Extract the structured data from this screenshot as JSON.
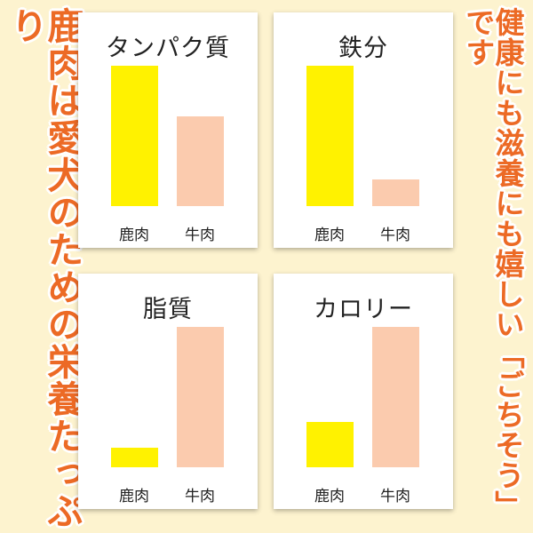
{
  "left_tagline": "鹿肉は愛犬のための栄養たっぷり",
  "right_tagline": "健康にも滋養にも嬉しい「ごちそう」です",
  "colors": {
    "deer": "#fff200",
    "beef": "#fbcbae",
    "accent": "#ec6a25",
    "background": "#fdf3cf"
  },
  "chart_data": [
    {
      "type": "bar",
      "title": "タンパク質",
      "categories": [
        "鹿肉",
        "牛肉"
      ],
      "values": [
        100,
        64
      ],
      "ylim": [
        0,
        100
      ]
    },
    {
      "type": "bar",
      "title": "鉄分",
      "categories": [
        "鹿肉",
        "牛肉"
      ],
      "values": [
        100,
        19
      ],
      "ylim": [
        0,
        100
      ]
    },
    {
      "type": "bar",
      "title": "脂質",
      "categories": [
        "鹿肉",
        "牛肉"
      ],
      "values": [
        14,
        100
      ],
      "ylim": [
        0,
        100
      ]
    },
    {
      "type": "bar",
      "title": "カロリー",
      "categories": [
        "鹿肉",
        "牛肉"
      ],
      "values": [
        32,
        100
      ],
      "ylim": [
        0,
        100
      ]
    }
  ]
}
